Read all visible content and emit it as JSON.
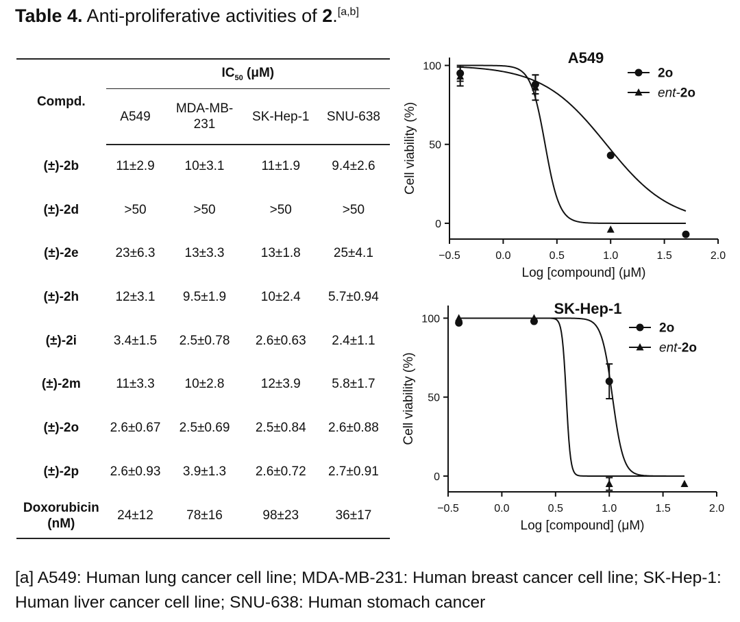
{
  "title": {
    "label": "Table 4.",
    "text": " Anti-proliferative activities of ",
    "compound": "2",
    "period": ".",
    "superscript": "[a,b]"
  },
  "table": {
    "compd_header": "Compd.",
    "ic50_header": "IC",
    "ic50_sub": "50",
    "ic50_unit": " (μM)",
    "columns": [
      "A549",
      "MDA-MB-231",
      "SK-Hep-1",
      "SNU-638"
    ],
    "column_lines": [
      [
        "A549"
      ],
      [
        "MDA-MB-",
        "231"
      ],
      [
        "SK-Hep-1"
      ],
      [
        "SNU-638"
      ]
    ],
    "rows": [
      {
        "compound": "(±)-2b",
        "values": [
          "11±2.9",
          "10±3.1",
          "11±1.9",
          "9.4±2.6"
        ]
      },
      {
        "compound": "(±)-2d",
        "values": [
          ">50",
          ">50",
          ">50",
          ">50"
        ]
      },
      {
        "compound": "(±)-2e",
        "values": [
          "23±6.3",
          "13±3.3",
          "13±1.8",
          "25±4.1"
        ]
      },
      {
        "compound": "(±)-2h",
        "values": [
          "12±3.1",
          "9.5±1.9",
          "10±2.4",
          "5.7±0.94"
        ]
      },
      {
        "compound": "(±)-2i",
        "values": [
          "3.4±1.5",
          "2.5±0.78",
          "2.6±0.63",
          "2.4±1.1"
        ]
      },
      {
        "compound": "(±)-2m",
        "values": [
          "11±3.3",
          "10±2.8",
          "12±3.9",
          "5.8±1.7"
        ]
      },
      {
        "compound": "(±)-2o",
        "values": [
          "2.6±0.67",
          "2.5±0.69",
          "2.5±0.84",
          "2.6±0.88"
        ]
      },
      {
        "compound": "(±)-2p",
        "values": [
          "2.6±0.93",
          "3.9±1.3",
          "2.6±0.72",
          "2.7±0.91"
        ]
      }
    ],
    "last_row": {
      "compound_lines": [
        "Doxorubicin",
        "(nM)"
      ],
      "values": [
        "24±12",
        "78±16",
        "98±23",
        "36±17"
      ]
    }
  },
  "chart_data": [
    {
      "type": "line",
      "title": "A549",
      "xlabel": "Log [compound] (μM)",
      "ylabel": "Cell viability (%)",
      "xlim": [
        -0.5,
        2.0
      ],
      "ylim": [
        -10,
        105
      ],
      "xticks": [
        "−0.5",
        "0.0",
        "0.5",
        "1.0",
        "1.5",
        "2.0"
      ],
      "xtick_values": [
        -0.5,
        0.0,
        0.5,
        1.0,
        1.5,
        2.0
      ],
      "yticks": [
        "0",
        "50",
        "100"
      ],
      "ytick_values": [
        0,
        50,
        100
      ],
      "legend": {
        "position": "top-right",
        "entries": [
          {
            "name": "2o",
            "prefix": "",
            "marker": "circle"
          },
          {
            "name": "2o",
            "prefix": "ent-",
            "marker": "triangle"
          }
        ]
      },
      "series": [
        {
          "name": "2o",
          "marker": "circle",
          "points": [
            {
              "x": -0.4,
              "y": 95,
              "err": 5
            },
            {
              "x": 0.3,
              "y": 88,
              "err": 6
            },
            {
              "x": 1.0,
              "y": 43,
              "err": 0
            },
            {
              "x": 1.7,
              "y": -7,
              "err": 0
            }
          ],
          "fit": {
            "top": 100,
            "bottom": 0,
            "logIC50": 0.96,
            "hill": 1.45,
            "xmin": -0.4,
            "xmax": 1.7
          }
        },
        {
          "name": "ent-2o",
          "marker": "triangle",
          "points": [
            {
              "x": -0.4,
              "y": 93,
              "err": 6
            },
            {
              "x": 0.3,
              "y": 86,
              "err": 8
            },
            {
              "x": 1.0,
              "y": -4,
              "err": 0
            }
          ],
          "fit": {
            "top": 100,
            "bottom": 0,
            "logIC50": 0.39,
            "hill": 6.5,
            "xmin": -0.4,
            "xmax": 1.7
          }
        }
      ]
    },
    {
      "type": "line",
      "title": "SK-Hep-1",
      "xlabel": "Log [compound] (μM)",
      "ylabel": "Cell viability (%)",
      "xlim": [
        -0.5,
        2.0
      ],
      "ylim": [
        -10,
        108
      ],
      "xticks": [
        "−0.5",
        "0.0",
        "0.5",
        "1.0",
        "1.5",
        "2.0"
      ],
      "xtick_values": [
        -0.5,
        0.0,
        0.5,
        1.0,
        1.5,
        2.0
      ],
      "yticks": [
        "0",
        "50",
        "100"
      ],
      "ytick_values": [
        0,
        50,
        100
      ],
      "legend": {
        "position": "top-right",
        "entries": [
          {
            "name": "2o",
            "prefix": "",
            "marker": "circle"
          },
          {
            "name": "2o",
            "prefix": "ent-",
            "marker": "triangle"
          }
        ]
      },
      "series": [
        {
          "name": "2o",
          "marker": "circle",
          "points": [
            {
              "x": -0.4,
              "y": 97,
              "err": 0
            },
            {
              "x": 0.3,
              "y": 98,
              "err": 0
            },
            {
              "x": 1.0,
              "y": 60,
              "err": 11
            }
          ],
          "fit": {
            "top": 100,
            "bottom": 0,
            "logIC50": 1.03,
            "hill": 8.5,
            "xmin": -0.4,
            "xmax": 1.7
          }
        },
        {
          "name": "ent-2o",
          "marker": "triangle",
          "points": [
            {
              "x": -0.4,
              "y": 100,
              "err": 0
            },
            {
              "x": 0.3,
              "y": 100,
              "err": 0
            },
            {
              "x": 1.0,
              "y": -5,
              "err": 4
            },
            {
              "x": 1.7,
              "y": -5,
              "err": 0
            }
          ],
          "fit": {
            "top": 100,
            "bottom": 0,
            "logIC50": 0.6,
            "hill": 22,
            "xmin": -0.4,
            "xmax": 1.7
          }
        }
      ]
    }
  ],
  "footnote": "[a] A549: Human lung cancer cell line; MDA-MB-231: Human breast cancer cell line; SK-Hep-1: Human liver cancer cell line; SNU-638: Human stomach cancer"
}
